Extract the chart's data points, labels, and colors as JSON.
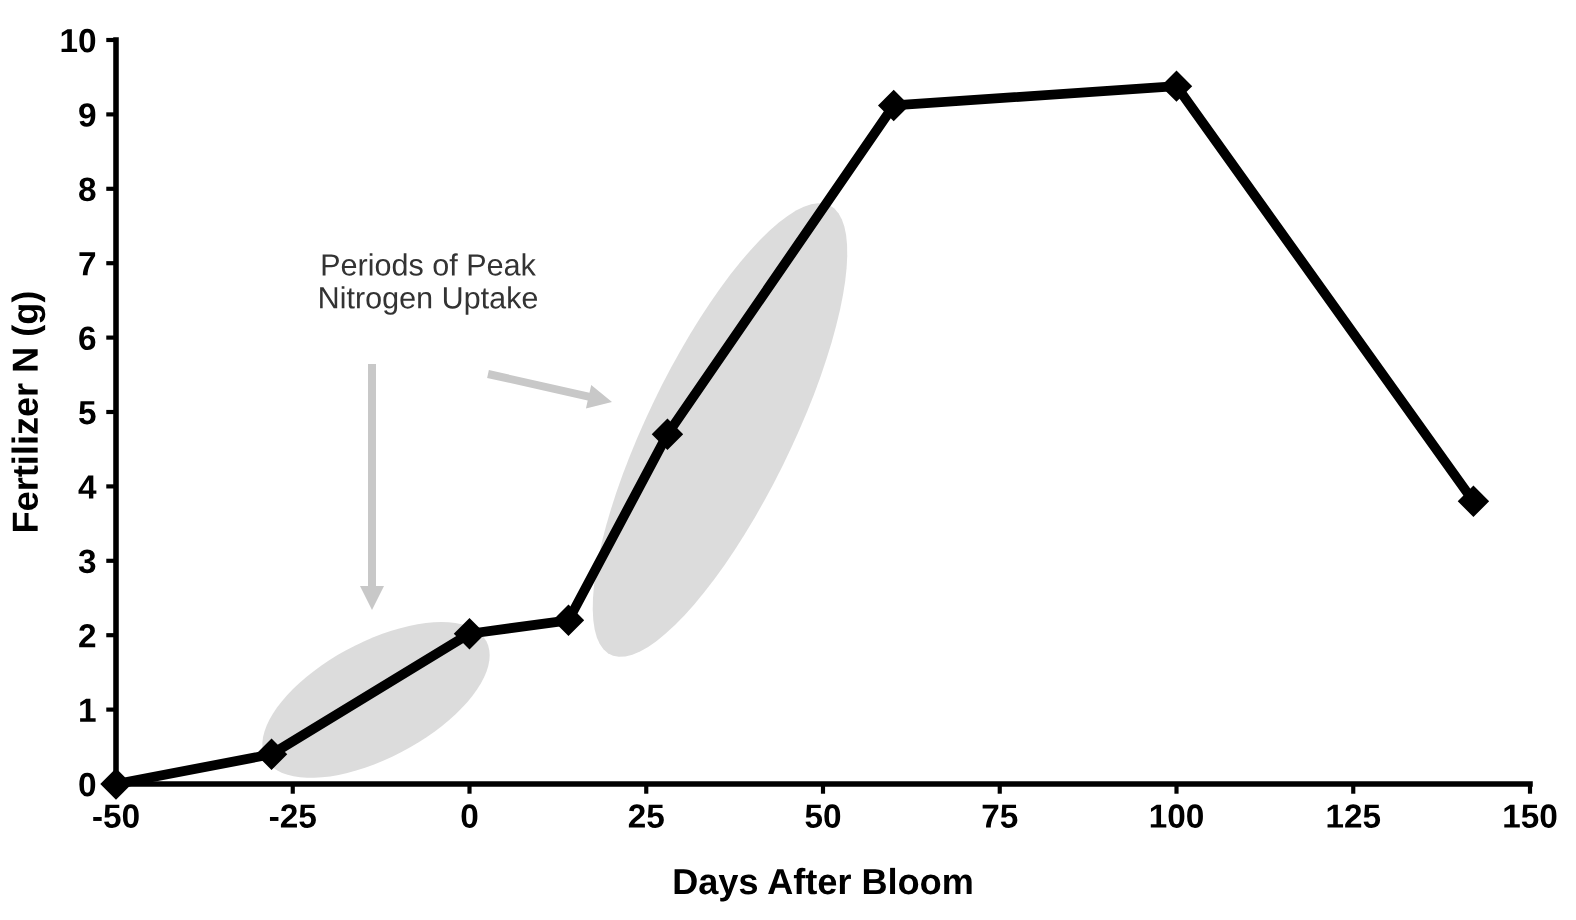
{
  "chart_data": {
    "type": "line",
    "xlabel": "Days After Bloom",
    "ylabel": "Fertilizer N (g)",
    "x": [
      -50,
      -28,
      0,
      14,
      28,
      60,
      100,
      142
    ],
    "series": [
      {
        "color": "#000000",
        "values": [
          0,
          0.4,
          2.02,
          2.2,
          4.7,
          9.12,
          9.38,
          3.8
        ]
      }
    ],
    "xlim": [
      -50,
      150
    ],
    "xticks": [
      -50,
      -25,
      0,
      25,
      50,
      75,
      100,
      125,
      150
    ],
    "ylim": [
      0,
      10
    ],
    "yticks": [
      0,
      1,
      2,
      3,
      4,
      5,
      6,
      7,
      8,
      9,
      10
    ],
    "marker": "diamond",
    "line_style": "solid",
    "grid": false,
    "legend": false,
    "annotations": [
      "Periods of Peak\nNitrogen Uptake"
    ]
  }
}
